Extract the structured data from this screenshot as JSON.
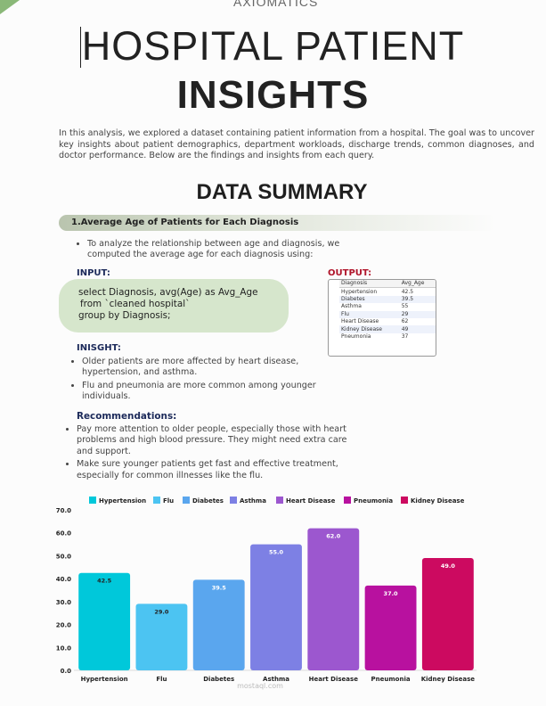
{
  "header": {
    "brand": "AXIOMATICS",
    "title_line1": "HOSPITAL PATIENT",
    "title_line2": "INSIGHTS"
  },
  "intro": "In this analysis, we explored a dataset containing patient information from a hospital. The goal was to uncover key insights about patient demographics, department workloads, discharge trends, common diagnoses, and doctor performance. Below are the findings and insights from each query.",
  "section_title": "DATA SUMMARY",
  "query": {
    "heading": "1.Average Age of Patients for Each Diagnosis",
    "bullet": "To analyze the relationship between age and diagnosis, we computed the average age for each diagnosis using:",
    "input_label": "INPUT:",
    "code": [
      "select Diagnosis, avg(Age) as Avg_Age",
      "from `cleaned hospital`",
      "group by Diagnosis;"
    ],
    "output_label": "OUTPUT:",
    "output_table": {
      "columns": [
        "Diagnosis",
        "Avg_Age"
      ],
      "rows": [
        [
          "Hypertension",
          "42.5"
        ],
        [
          "Diabetes",
          "39.5"
        ],
        [
          "Asthma",
          "55"
        ],
        [
          "Flu",
          "29"
        ],
        [
          "Heart Disease",
          "62"
        ],
        [
          "Kidney Disease",
          "49"
        ],
        [
          "Pneumonia",
          "37"
        ]
      ]
    }
  },
  "insight": {
    "heading": "INISGHT:",
    "bullets": [
      "Older patients are more affected by heart disease, hypertension, and asthma.",
      "Flu and pneumonia are more common among younger individuals."
    ]
  },
  "recommendations": {
    "heading": "Recommendations:",
    "bullets": [
      "Pay more attention to older people, especially those with heart problems and high blood pressure. They might need extra care and support.",
      "Make sure younger patients get fast and effective treatment, especially for common illnesses like the flu."
    ]
  },
  "watermark": "mostaql.com",
  "chart_data": {
    "type": "bar",
    "categories": [
      "Hypertension",
      "Flu",
      "Diabetes",
      "Asthma",
      "Heart Disease",
      "Pneumonia",
      "Kidney Disease"
    ],
    "values": [
      42.5,
      29,
      39.5,
      55,
      62,
      37,
      49
    ],
    "value_labels": [
      "42.5",
      "29.0",
      "39.5",
      "55.0",
      "62.0",
      "37.0",
      "49.0"
    ],
    "colors": [
      "#00c8da",
      "#4cc4f2",
      "#5aa6ee",
      "#7d80e4",
      "#9c57cf",
      "#b8119f",
      "#cc0a60"
    ],
    "ylim": [
      0,
      70
    ],
    "yticks": [
      {
        "value": 0,
        "label": "0.0"
      },
      {
        "value": 10,
        "label": "10.0"
      },
      {
        "value": 20,
        "label": "20.0"
      },
      {
        "value": 30,
        "label": "30.0"
      },
      {
        "value": 40,
        "label": "40.0"
      },
      {
        "value": 50,
        "label": "50.0"
      },
      {
        "value": 60,
        "label": "60.0"
      },
      {
        "value": 70,
        "label": "70.0"
      }
    ],
    "legend": "top"
  }
}
